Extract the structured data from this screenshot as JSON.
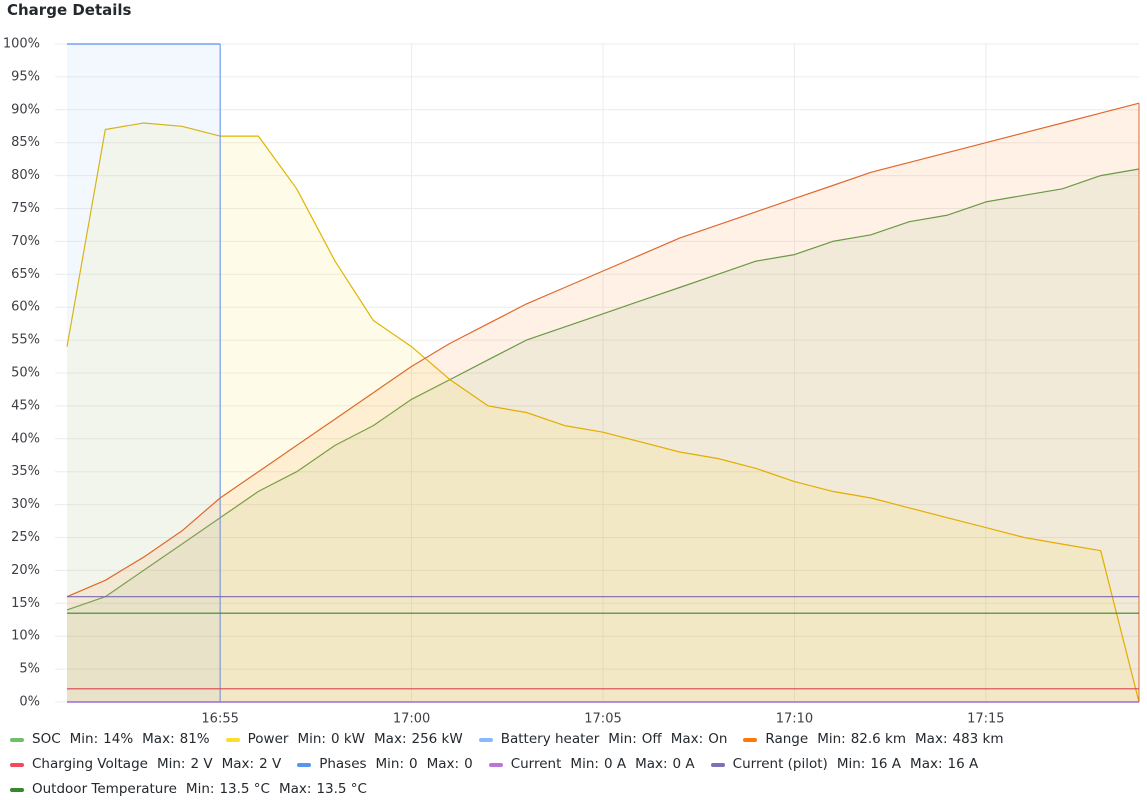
{
  "chart_data": {
    "type": "line",
    "title": "Charge Details",
    "x": [
      "16:51",
      "16:52",
      "16:53",
      "16:54",
      "16:55",
      "16:56",
      "16:57",
      "16:58",
      "16:59",
      "17:00",
      "17:01",
      "17:02",
      "17:03",
      "17:04",
      "17:05",
      "17:06",
      "17:07",
      "17:08",
      "17:09",
      "17:10",
      "17:11",
      "17:12",
      "17:13",
      "17:14",
      "17:15",
      "17:16",
      "17:17",
      "17:18",
      "17:19"
    ],
    "xlim": [
      "16:51",
      "17:19"
    ],
    "xticks": [
      "16:55",
      "17:00",
      "17:05",
      "17:10",
      "17:15"
    ],
    "ylim": [
      0,
      100
    ],
    "yticks": [
      {
        "value": 0,
        "label": "0%"
      },
      {
        "value": 5,
        "label": "5%"
      },
      {
        "value": 10,
        "label": "10%"
      },
      {
        "value": 15,
        "label": "15%"
      },
      {
        "value": 20,
        "label": "20%"
      },
      {
        "value": 25,
        "label": "25%"
      },
      {
        "value": 30,
        "label": "30%"
      },
      {
        "value": 35,
        "label": "35%"
      },
      {
        "value": 40,
        "label": "40%"
      },
      {
        "value": 45,
        "label": "45%"
      },
      {
        "value": 50,
        "label": "50%"
      },
      {
        "value": 55,
        "label": "55%"
      },
      {
        "value": 60,
        "label": "60%"
      },
      {
        "value": 65,
        "label": "65%"
      },
      {
        "value": 70,
        "label": "70%"
      },
      {
        "value": 75,
        "label": "75%"
      },
      {
        "value": 80,
        "label": "80%"
      },
      {
        "value": 85,
        "label": "85%"
      },
      {
        "value": 90,
        "label": "90%"
      },
      {
        "value": 95,
        "label": "95%"
      },
      {
        "value": 100,
        "label": "100%"
      }
    ],
    "grid": true,
    "legend_stat_labels": [
      "Min:",
      "Max:"
    ],
    "series": [
      {
        "name": "SOC",
        "color": "#73bf69",
        "line_color": "#5a9e4f",
        "fill": true,
        "min": "14%",
        "max": "81%",
        "values": [
          14,
          16,
          20,
          24,
          28,
          32,
          35,
          39,
          42,
          46,
          49,
          52,
          55,
          57,
          59,
          61,
          63,
          65,
          67,
          68,
          70,
          71,
          73,
          74,
          76,
          77,
          78,
          80,
          81
        ]
      },
      {
        "name": "Power",
        "color": "#fade2a",
        "line_color": "#e0b400",
        "fill": true,
        "min": "0 kW",
        "max": "256 kW",
        "values": [
          54,
          87,
          88,
          87.5,
          86,
          86,
          78,
          67,
          58,
          54,
          49,
          45,
          44,
          42,
          41,
          39.5,
          38,
          37,
          35.5,
          33.5,
          32,
          31,
          29.5,
          28,
          26.5,
          25,
          24,
          23,
          0
        ]
      },
      {
        "name": "Battery heater",
        "color": "#8ab8ff",
        "line_color": "#5b8ff0",
        "fill": true,
        "min": "Off",
        "max": "On",
        "values": [
          100,
          100,
          100,
          100,
          100,
          null,
          null,
          null,
          null,
          null,
          null,
          null,
          null,
          null,
          null,
          null,
          null,
          null,
          null,
          null,
          null,
          null,
          null,
          null,
          null,
          null,
          null,
          null,
          null
        ]
      },
      {
        "name": "Range",
        "color": "#ff780a",
        "line_color": "#e0692d",
        "fill": true,
        "min": "82.6 km",
        "max": "483 km",
        "values": [
          16,
          18.5,
          22,
          26,
          31,
          35,
          39,
          43,
          47,
          51,
          54.5,
          57.5,
          60.5,
          63,
          65.5,
          68,
          70.5,
          72.5,
          74.5,
          76.5,
          78.5,
          80.5,
          82,
          83.5,
          85,
          86.5,
          88,
          89.5,
          91
        ]
      },
      {
        "name": "Charging Voltage",
        "color": "#f2495c",
        "line_color": "#d9434f",
        "fill": false,
        "min": "2 V",
        "max": "2 V",
        "values": [
          2,
          2,
          2,
          2,
          2,
          2,
          2,
          2,
          2,
          2,
          2,
          2,
          2,
          2,
          2,
          2,
          2,
          2,
          2,
          2,
          2,
          2,
          2,
          2,
          2,
          2,
          2,
          2,
          2
        ]
      },
      {
        "name": "Phases",
        "color": "#5794f2",
        "line_color": "#5794f2",
        "fill": false,
        "min": "0",
        "max": "0",
        "values": [
          0,
          0,
          0,
          0,
          0,
          0,
          0,
          0,
          0,
          0,
          0,
          0,
          0,
          0,
          0,
          0,
          0,
          0,
          0,
          0,
          0,
          0,
          0,
          0,
          0,
          0,
          0,
          0,
          0
        ]
      },
      {
        "name": "Current",
        "color": "#b877d9",
        "line_color": "#a35fd0",
        "fill": false,
        "min": "0 A",
        "max": "0 A",
        "values": [
          0,
          0,
          0,
          0,
          0,
          0,
          0,
          0,
          0,
          0,
          0,
          0,
          0,
          0,
          0,
          0,
          0,
          0,
          0,
          0,
          0,
          0,
          0,
          0,
          0,
          0,
          0,
          0,
          0
        ]
      },
      {
        "name": "Current (pilot)",
        "color": "#806eb7",
        "line_color": "#7a68b0",
        "fill": false,
        "min": "16 A",
        "max": "16 A",
        "values": [
          16,
          16,
          16,
          16,
          16,
          16,
          16,
          16,
          16,
          16,
          16,
          16,
          16,
          16,
          16,
          16,
          16,
          16,
          16,
          16,
          16,
          16,
          16,
          16,
          16,
          16,
          16,
          16,
          16
        ]
      },
      {
        "name": "Outdoor Temperature",
        "color": "#37872d",
        "line_color": "#37872d",
        "fill": false,
        "min": "13.5 °C",
        "max": "13.5 °C",
        "values": [
          13.5,
          13.5,
          13.5,
          13.5,
          13.5,
          13.5,
          13.5,
          13.5,
          13.5,
          13.5,
          13.5,
          13.5,
          13.5,
          13.5,
          13.5,
          13.5,
          13.5,
          13.5,
          13.5,
          13.5,
          13.5,
          13.5,
          13.5,
          13.5,
          13.5,
          13.5,
          13.5,
          13.5,
          13.5
        ]
      }
    ]
  }
}
